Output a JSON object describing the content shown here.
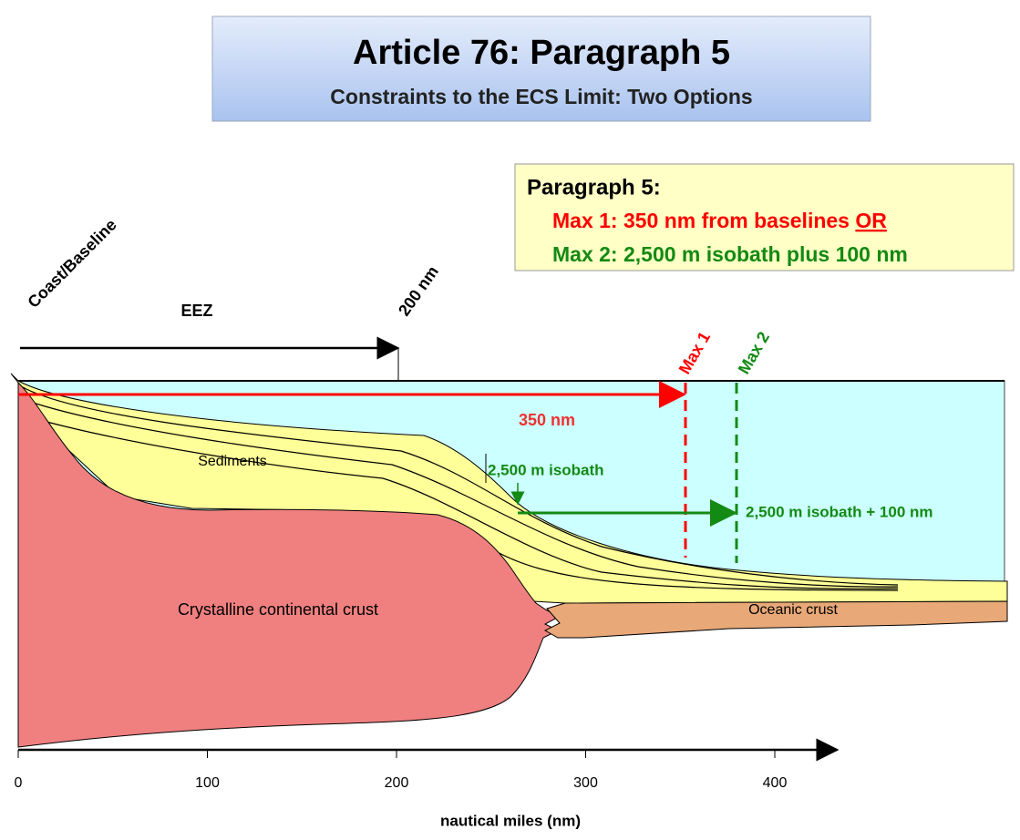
{
  "title": "Article 76:  Paragraph 5",
  "subtitle": "Constraints to the ECS Limit:  Two Options",
  "info_box": {
    "heading": "Paragraph 5:",
    "max1": "Max 1:  350 nm from baselines",
    "max1_emphasis": "OR",
    "max2": "Max 2:  2,500 m isobath plus 100 nm"
  },
  "labels": {
    "coast": "Coast/Baseline",
    "eez": "EEZ",
    "limit_200": "200 nm",
    "max1": "Max 1",
    "max2": "Max 2",
    "distance_350": "350 nm",
    "sediments": "Sediments",
    "isobath": "2,500 m isobath",
    "isobath_plus": "2,500 m isobath + 100 nm",
    "continental_crust": "Crystalline continental crust",
    "oceanic_crust": "Oceanic crust"
  },
  "axis": {
    "title": "nautical miles (nm)",
    "ticks": [
      0,
      100,
      200,
      300,
      400
    ]
  }
}
